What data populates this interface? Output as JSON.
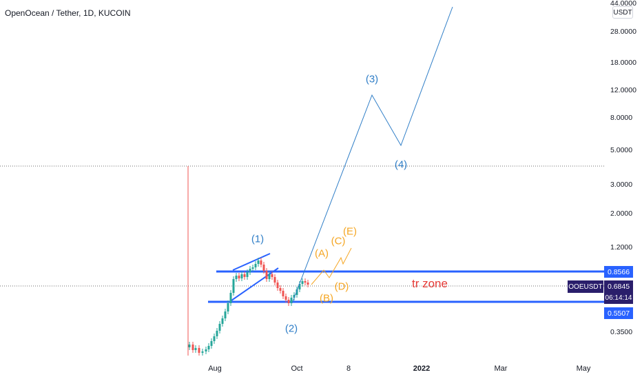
{
  "header": {
    "title": "OpenOcean / Tether, 1D, KUCOIN"
  },
  "price_axis": {
    "unit": "USDT",
    "ticks": [
      "44.0000",
      "28.0000",
      "18.0000",
      "12.0000",
      "8.0000",
      "5.0000",
      "3.0000",
      "2.0000",
      "1.2000",
      "0.3500"
    ]
  },
  "time_axis": {
    "ticks": [
      "Aug",
      "Oct",
      "8",
      "2022",
      "Mar",
      "May"
    ]
  },
  "price_labels": {
    "upper": "0.8566",
    "current": "0.6845",
    "countdown": "06:14:14",
    "lower": "0.5507",
    "symbol": "OOEUSDT"
  },
  "annotations": {
    "wave_blue": [
      "(1)",
      "(2)",
      "(3)",
      "(4)"
    ],
    "wave_orange": [
      "(A)",
      "(B)",
      "(C)",
      "(D)",
      "(E)"
    ],
    "zone_label": "tr zone"
  },
  "colors": {
    "up": "#26a69a",
    "down": "#ef5350",
    "projection": "#2f7ec7",
    "orange": "#f5a623",
    "zone_line": "#2962ff",
    "current_label": "#2a1e6b"
  }
}
